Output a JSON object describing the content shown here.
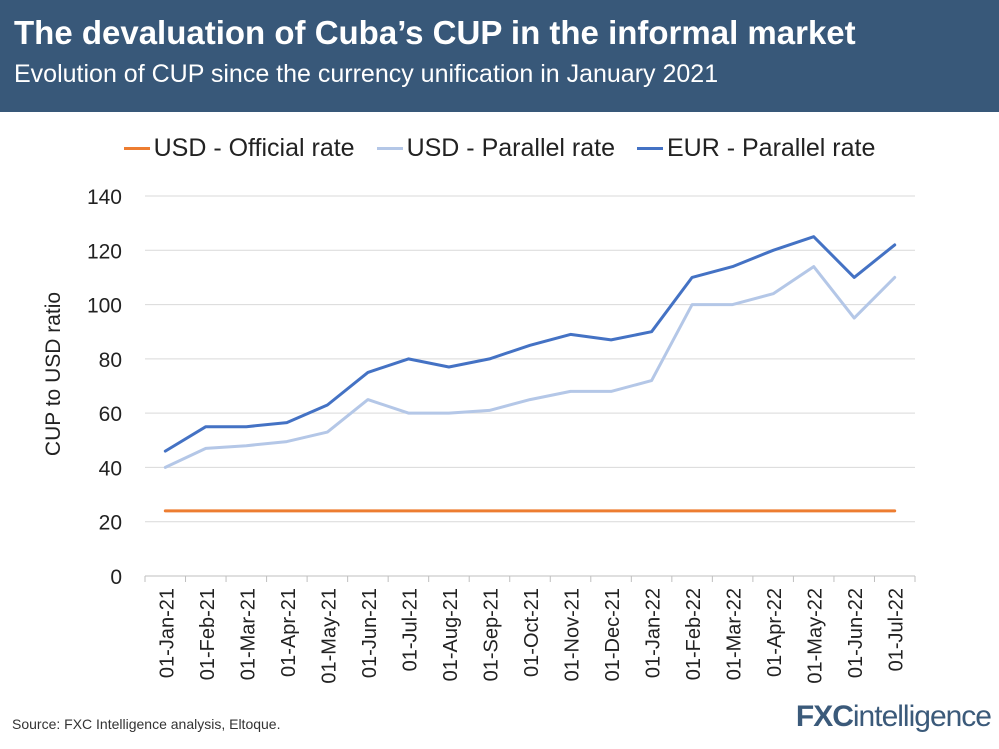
{
  "header": {
    "title": "The devaluation of Cuba’s CUP in the informal market",
    "subtitle": "Evolution of CUP since the currency unification in January 2021"
  },
  "footer": {
    "source": "Source: FXC Intelligence analysis, Eltoque.",
    "logo_bold": "FXC",
    "logo_rest": "intelligence"
  },
  "colors": {
    "header_bg": "#385879",
    "official": "#ED7D31",
    "usd_parallel": "#B4C7E7",
    "eur_parallel": "#4472C4"
  },
  "chart_data": {
    "type": "line",
    "title": "The devaluation of Cuba’s CUP in the informal market",
    "subtitle": "Evolution of CUP since the currency unification in January 2021",
    "ylabel": "CUP to USD ratio",
    "xlabel": "",
    "ylim": [
      0,
      140
    ],
    "yticks": [
      0,
      20,
      40,
      60,
      80,
      100,
      120,
      140
    ],
    "grid": true,
    "legend_position": "top",
    "categories": [
      "01-Jan-21",
      "01-Feb-21",
      "01-Mar-21",
      "01-Apr-21",
      "01-May-21",
      "01-Jun-21",
      "01-Jul-21",
      "01-Aug-21",
      "01-Sep-21",
      "01-Oct-21",
      "01-Nov-21",
      "01-Dec-21",
      "01-Jan-22",
      "01-Feb-22",
      "01-Mar-22",
      "01-Apr-22",
      "01-May-22",
      "01-Jun-22",
      "01-Jul-22"
    ],
    "series": [
      {
        "name": "USD - Official rate",
        "color": "#ED7D31",
        "values": [
          24,
          24,
          24,
          24,
          24,
          24,
          24,
          24,
          24,
          24,
          24,
          24,
          24,
          24,
          24,
          24,
          24,
          24,
          24
        ]
      },
      {
        "name": "USD - Parallel rate",
        "color": "#B4C7E7",
        "values": [
          40,
          47,
          48,
          49.5,
          53,
          65,
          60,
          60,
          61,
          65,
          68,
          68,
          72,
          100,
          100,
          104,
          114,
          95,
          110
        ]
      },
      {
        "name": "EUR - Parallel rate",
        "color": "#4472C4",
        "values": [
          46,
          55,
          55,
          56.5,
          63,
          75,
          80,
          77,
          80,
          85,
          89,
          87,
          90,
          110,
          114,
          120,
          125,
          110,
          122
        ]
      }
    ]
  }
}
